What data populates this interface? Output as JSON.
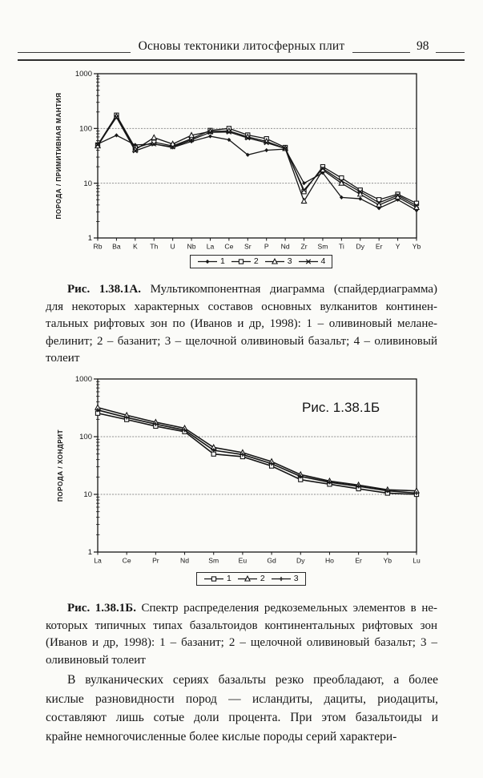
{
  "header": {
    "title": "Основы тектоники литосферных плит",
    "page_number": "98"
  },
  "chart_data": [
    {
      "type": "line",
      "title": "",
      "ylabel": "ПОРОДА / ПРИМИТИВНАЯ МАНТИЯ",
      "xlabel": "",
      "yscale": "log",
      "ylim": [
        1,
        1000
      ],
      "yticks": [
        "1000",
        "100",
        "10",
        "1"
      ],
      "ytick_values": [
        1000,
        100,
        10,
        1
      ],
      "gridlines": [
        100,
        10
      ],
      "grid": "horizontal-only",
      "legend_position": "bottom-center",
      "categories": [
        "Rb",
        "Ba",
        "K",
        "Th",
        "U",
        "Nb",
        "La",
        "Ce",
        "Sr",
        "P",
        "Nd",
        "Zr",
        "Sm",
        "Ti",
        "Dy",
        "Er",
        "Y",
        "Yb"
      ],
      "series": [
        {
          "name": "1",
          "marker": "diamond-filled",
          "values": [
            52,
            75,
            50,
            52,
            45,
            58,
            72,
            62,
            33,
            40,
            42,
            10,
            15.5,
            5.5,
            5.2,
            3.5,
            5,
            3.2
          ]
        },
        {
          "name": "2",
          "marker": "square-open",
          "values": [
            50,
            175,
            44,
            56,
            48,
            65,
            92,
            100,
            76,
            65,
            45,
            7,
            20,
            12.5,
            7.5,
            5,
            6.3,
            4.3
          ]
        },
        {
          "name": "3",
          "marker": "triangle-open",
          "values": [
            48,
            165,
            41,
            68,
            52,
            75,
            88,
            90,
            70,
            58,
            43,
            4.7,
            17.5,
            10,
            6.3,
            4,
            5.6,
            3.6
          ]
        },
        {
          "name": "4",
          "marker": "x",
          "values": [
            50,
            160,
            39,
            52,
            46,
            62,
            85,
            86,
            67,
            55,
            43,
            7.5,
            18.5,
            11,
            7,
            4.4,
            6,
            3.9
          ]
        }
      ]
    },
    {
      "type": "line",
      "title": "Рис. 1.38.1Б",
      "ylabel": "ПОРОДА / ХОНДРИТ",
      "xlabel": "",
      "yscale": "log",
      "ylim": [
        1,
        1000
      ],
      "yticks": [
        "1000",
        "100",
        "10",
        "1"
      ],
      "ytick_values": [
        1000,
        100,
        10,
        1
      ],
      "gridlines": [
        100,
        10
      ],
      "grid": "horizontal-only",
      "legend_position": "bottom-center",
      "categories": [
        "La",
        "Ce",
        "Pr",
        "Nd",
        "Sm",
        "Eu",
        "Gd",
        "Dy",
        "Ho",
        "Er",
        "Yb",
        "Lu"
      ],
      "series": [
        {
          "name": "1",
          "marker": "square-open",
          "values": [
            255,
            198,
            152,
            122,
            50,
            45,
            31,
            18,
            15,
            12.5,
            10.5,
            10
          ]
        },
        {
          "name": "2",
          "marker": "triangle-open",
          "values": [
            320,
            235,
            178,
            140,
            65,
            53,
            37,
            22,
            17,
            14.5,
            12,
            11.5
          ]
        },
        {
          "name": "3",
          "marker": "plus",
          "values": [
            290,
            215,
            165,
            130,
            58,
            49,
            34,
            20.5,
            16.2,
            13.8,
            11.5,
            10.5
          ]
        }
      ]
    }
  ],
  "caption_a": {
    "label": "Рис. 1.38.1А.",
    "line1": "Мультикомпонентная диаграмма (спайдердиаграмма)",
    "line2": "для некоторых характерных составов основных вулканитов континен-",
    "line3": "тальных рифтовых зон по (Иванов и др, 1998): 1 – оливиновый мелане-",
    "line4": "фелинит; 2 – базанит; 3 – щелочной оливиновый базальт; 4 – оливиновый",
    "line5": "толеит"
  },
  "caption_b": {
    "label": "Рис. 1.38.1Б.",
    "line1": "Спектр распределения редкоземельных элементов в не-",
    "line2": "которых типичных типах базальтоидов континентальных рифтовых зон",
    "line3": "(Иванов и др, 1998): 1 – базанит; 2 – щелочной оливиновый базальт; 3 –",
    "line4": "оливиновый толеит"
  },
  "body_text": {
    "line1": "В вулканических сериях базальты резко преобладают, а более",
    "line2": "кислые разновидности пород — исландиты, дациты, риодациты,",
    "line3": "составляют лишь сотые доли процента. При этом базальтоиды и",
    "line4": "крайне немногочисленные более кислые породы серий характери-"
  },
  "colors": {
    "ink": "#161616",
    "paper": "#fbfbf8",
    "gridline": "#8f8f8f"
  }
}
